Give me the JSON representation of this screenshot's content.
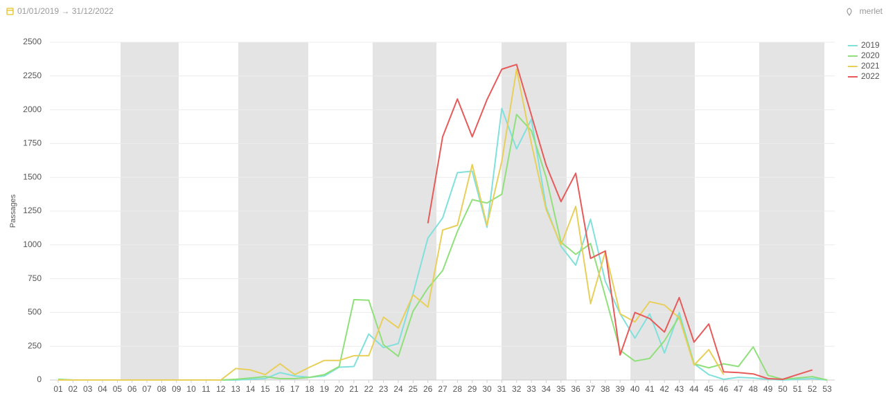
{
  "header": {
    "date_range": "01/01/2019 → 31/12/2022",
    "location": "merlet"
  },
  "chart_data": {
    "type": "line",
    "ylabel": "Passages",
    "categories": [
      "01",
      "02",
      "03",
      "04",
      "05",
      "06",
      "07",
      "08",
      "09",
      "10",
      "11",
      "12",
      "13",
      "14",
      "15",
      "16",
      "17",
      "18",
      "19",
      "20",
      "21",
      "22",
      "23",
      "24",
      "25",
      "26",
      "27",
      "28",
      "29",
      "30",
      "31",
      "32",
      "33",
      "34",
      "35",
      "36",
      "37",
      "38",
      "39",
      "40",
      "41",
      "42",
      "43",
      "44",
      "45",
      "46",
      "47",
      "48",
      "49",
      "50",
      "51",
      "52",
      "53"
    ],
    "ylim": [
      0,
      2500
    ],
    "yticks": [
      0,
      250,
      500,
      750,
      1000,
      1250,
      1500,
      1750,
      2000,
      2250,
      2500
    ],
    "grid": true,
    "legend": "top-right",
    "series": [
      {
        "name": "2019",
        "color": "#7fe0dc",
        "values": [
          5,
          0,
          0,
          0,
          0,
          0,
          0,
          0,
          0,
          0,
          0,
          0,
          0,
          5,
          10,
          55,
          30,
          20,
          30,
          95,
          100,
          340,
          240,
          270,
          640,
          1050,
          1200,
          1535,
          1545,
          1130,
          2010,
          1710,
          1930,
          1280,
          990,
          850,
          1190,
          730,
          490,
          310,
          490,
          200,
          500,
          120,
          40,
          5,
          20,
          15,
          5,
          0,
          5,
          10,
          0
        ]
      },
      {
        "name": "2020",
        "color": "#8fe07a",
        "values": [
          5,
          0,
          0,
          0,
          0,
          0,
          0,
          0,
          0,
          0,
          0,
          0,
          5,
          15,
          25,
          10,
          10,
          20,
          40,
          100,
          595,
          590,
          260,
          175,
          510,
          680,
          810,
          1100,
          1335,
          1310,
          1375,
          1965,
          1845,
          1500,
          1020,
          930,
          1010,
          620,
          220,
          140,
          160,
          290,
          470,
          120,
          90,
          120,
          100,
          245,
          35,
          5,
          15,
          25,
          0
        ]
      },
      {
        "name": "2021",
        "color": "#e8cf5a",
        "values": [
          0,
          0,
          0,
          0,
          0,
          0,
          0,
          0,
          0,
          0,
          0,
          0,
          85,
          75,
          40,
          120,
          40,
          95,
          145,
          145,
          180,
          180,
          465,
          385,
          630,
          540,
          1110,
          1145,
          1595,
          1145,
          1620,
          2300,
          1750,
          1260,
          1000,
          1285,
          565,
          950,
          490,
          430,
          580,
          555,
          460,
          110,
          225,
          40,
          null,
          null,
          null,
          null,
          null,
          null,
          null
        ]
      },
      {
        "name": "2022",
        "color": "#e85a5a",
        "values": [
          null,
          null,
          null,
          null,
          null,
          null,
          null,
          null,
          null,
          null,
          null,
          null,
          null,
          null,
          null,
          null,
          null,
          null,
          null,
          null,
          null,
          null,
          null,
          null,
          null,
          1160,
          1800,
          2080,
          1800,
          2075,
          2300,
          2335,
          1960,
          1590,
          1320,
          1530,
          900,
          955,
          185,
          500,
          455,
          355,
          610,
          280,
          415,
          60,
          55,
          45,
          10,
          5,
          40,
          75,
          null
        ]
      }
    ]
  }
}
